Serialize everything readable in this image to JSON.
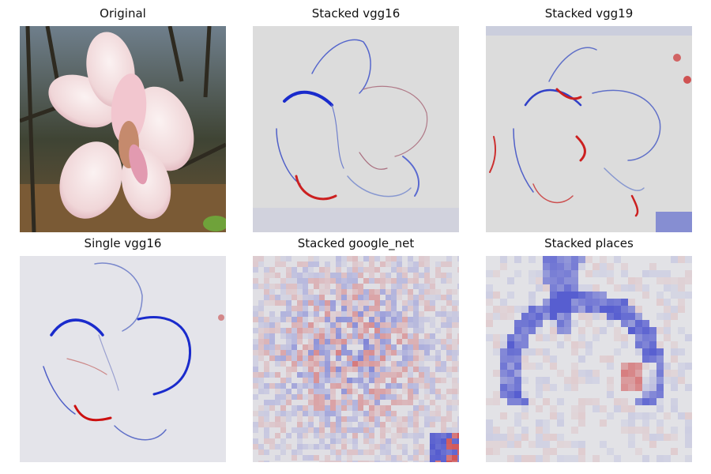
{
  "figure": {
    "panels": [
      {
        "title": "Original"
      },
      {
        "title": "Stacked vgg16"
      },
      {
        "title": "Stacked vgg19"
      },
      {
        "title": "Single vgg16"
      },
      {
        "title": "Stacked google_net"
      },
      {
        "title": "Stacked places"
      }
    ]
  },
  "colors": {
    "background": "#dcdcdc",
    "positive": "#cc0000",
    "negative": "#0000cc",
    "petal": "#f3dede",
    "petal_shadow": "#d79aa8",
    "foliage": "#4a4230"
  }
}
